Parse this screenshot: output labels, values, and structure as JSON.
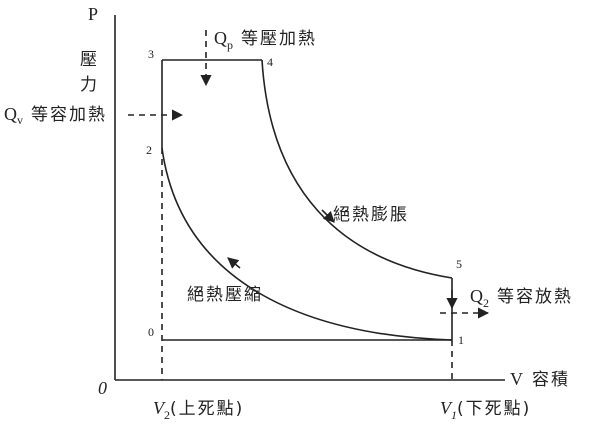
{
  "axes": {
    "y_symbol": "P",
    "y_label": "壓力",
    "x_symbol": "V",
    "x_label": "容積",
    "origin": "0"
  },
  "points": [
    "0",
    "1",
    "2",
    "3",
    "4",
    "5"
  ],
  "heat": {
    "qp": {
      "symbol": "Q",
      "sub": "p",
      "label": "等壓加熱"
    },
    "qv": {
      "symbol": "Q",
      "sub": "v",
      "label": "等容加熱"
    },
    "q2": {
      "symbol": "Q",
      "sub": "2",
      "label": "等容放熱"
    }
  },
  "processes": {
    "expansion": "絕熱膨脹",
    "compression": "絕熱壓縮"
  },
  "volumes": {
    "v2": {
      "symbol": "V",
      "sub": "2",
      "label": "(上死點)"
    },
    "v1": {
      "symbol": "V",
      "sub": "1",
      "label": "(下死點)"
    }
  }
}
